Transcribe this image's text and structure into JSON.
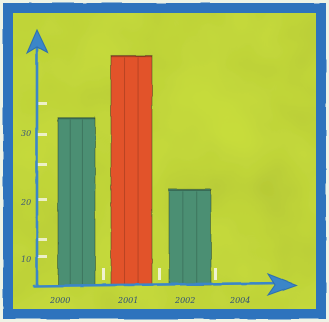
{
  "chart_data": {
    "type": "bar",
    "categories": [
      "2000",
      "2001",
      "2002",
      "2004"
    ],
    "values": [
      35,
      48,
      20,
      0
    ],
    "title": "",
    "xlabel": "",
    "ylabel": "",
    "y_tick_labels": [
      "10",
      "20",
      "30"
    ],
    "x_tick_labels": [
      "2000",
      "2001",
      "2002",
      "2004"
    ],
    "ylim": [
      0,
      55
    ],
    "grid": false,
    "colors": {
      "background": "#c9de3c",
      "frame": "#2f73bd",
      "axis": "#3a86c8",
      "bar_green": "#4c8f73",
      "bar_red": "#e2532a"
    },
    "bar_colors": [
      "#4c8f73",
      "#e2532a",
      "#4c8f73",
      ""
    ]
  }
}
